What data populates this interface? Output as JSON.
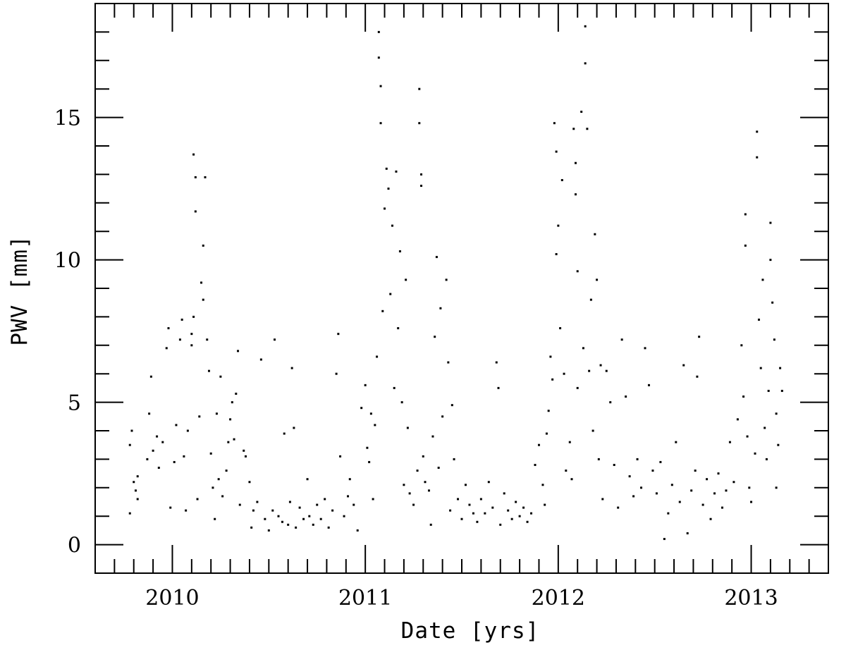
{
  "chart_data": {
    "type": "scatter",
    "title": "",
    "xlabel": "Date [yrs]",
    "ylabel": "PWV [mm]",
    "xlim": [
      2009.6,
      2013.4
    ],
    "ylim": [
      -1,
      19
    ],
    "xticks_major": [
      2010,
      2011,
      2012,
      2013
    ],
    "xtick_labels": [
      "2010",
      "2011",
      "2012",
      "2013"
    ],
    "yticks_major": [
      0,
      5,
      10,
      15
    ],
    "ytick_labels": [
      "0",
      "5",
      "10",
      "15"
    ],
    "grid": false,
    "legend": "none",
    "marker_color": "#000000",
    "series": [
      {
        "points": [
          [
            2009.78,
            1.1
          ],
          [
            2009.78,
            3.5
          ],
          [
            2009.79,
            4.0
          ],
          [
            2009.8,
            2.2
          ],
          [
            2009.81,
            1.9
          ],
          [
            2009.82,
            1.6
          ],
          [
            2009.82,
            2.4
          ],
          [
            2009.87,
            3.0
          ],
          [
            2009.88,
            4.6
          ],
          [
            2009.89,
            5.9
          ],
          [
            2009.9,
            3.3
          ],
          [
            2009.92,
            3.8
          ],
          [
            2009.93,
            2.7
          ],
          [
            2009.95,
            3.6
          ],
          [
            2009.97,
            6.9
          ],
          [
            2009.98,
            7.6
          ],
          [
            2009.99,
            1.3
          ],
          [
            2010.01,
            2.9
          ],
          [
            2010.02,
            4.2
          ],
          [
            2010.04,
            7.2
          ],
          [
            2010.05,
            7.9
          ],
          [
            2010.06,
            3.1
          ],
          [
            2010.07,
            1.2
          ],
          [
            2010.08,
            4.0
          ],
          [
            2010.1,
            7.4
          ],
          [
            2010.1,
            7.0
          ],
          [
            2010.11,
            8.0
          ],
          [
            2010.11,
            13.7
          ],
          [
            2010.12,
            12.9
          ],
          [
            2010.12,
            11.7
          ],
          [
            2010.13,
            1.6
          ],
          [
            2010.14,
            4.5
          ],
          [
            2010.15,
            9.2
          ],
          [
            2010.16,
            10.5
          ],
          [
            2010.16,
            8.6
          ],
          [
            2010.17,
            12.9
          ],
          [
            2010.18,
            7.2
          ],
          [
            2010.19,
            6.1
          ],
          [
            2010.2,
            3.2
          ],
          [
            2010.21,
            2.0
          ],
          [
            2010.22,
            0.9
          ],
          [
            2010.23,
            4.6
          ],
          [
            2010.24,
            2.3
          ],
          [
            2010.25,
            5.9
          ],
          [
            2010.26,
            1.7
          ],
          [
            2010.28,
            2.6
          ],
          [
            2010.29,
            3.6
          ],
          [
            2010.3,
            4.4
          ],
          [
            2010.31,
            5.0
          ],
          [
            2010.32,
            3.7
          ],
          [
            2010.33,
            5.3
          ],
          [
            2010.34,
            6.8
          ],
          [
            2010.35,
            1.4
          ],
          [
            2010.37,
            3.3
          ],
          [
            2010.38,
            3.1
          ],
          [
            2010.4,
            2.2
          ],
          [
            2010.41,
            0.6
          ],
          [
            2010.42,
            1.2
          ],
          [
            2010.44,
            1.5
          ],
          [
            2010.46,
            6.5
          ],
          [
            2010.48,
            0.9
          ],
          [
            2010.5,
            0.5
          ],
          [
            2010.52,
            1.2
          ],
          [
            2010.53,
            7.2
          ],
          [
            2010.55,
            1.0
          ],
          [
            2010.57,
            0.8
          ],
          [
            2010.58,
            3.9
          ],
          [
            2010.6,
            0.7
          ],
          [
            2010.61,
            1.5
          ],
          [
            2010.62,
            6.2
          ],
          [
            2010.63,
            4.1
          ],
          [
            2010.64,
            0.6
          ],
          [
            2010.66,
            1.3
          ],
          [
            2010.68,
            0.9
          ],
          [
            2010.7,
            2.3
          ],
          [
            2010.71,
            1.0
          ],
          [
            2010.73,
            0.7
          ],
          [
            2010.75,
            1.4
          ],
          [
            2010.77,
            0.9
          ],
          [
            2010.79,
            1.6
          ],
          [
            2010.81,
            0.6
          ],
          [
            2010.83,
            1.2
          ],
          [
            2010.85,
            6.0
          ],
          [
            2010.86,
            7.4
          ],
          [
            2010.87,
            3.1
          ],
          [
            2010.89,
            1.0
          ],
          [
            2010.91,
            1.7
          ],
          [
            2010.92,
            2.3
          ],
          [
            2010.94,
            1.4
          ],
          [
            2010.96,
            0.5
          ],
          [
            2010.98,
            4.8
          ],
          [
            2011.0,
            5.6
          ],
          [
            2011.01,
            3.4
          ],
          [
            2011.02,
            2.9
          ],
          [
            2011.03,
            4.6
          ],
          [
            2011.04,
            1.6
          ],
          [
            2011.05,
            4.2
          ],
          [
            2011.06,
            6.6
          ],
          [
            2011.07,
            17.1
          ],
          [
            2011.07,
            18.0
          ],
          [
            2011.08,
            16.1
          ],
          [
            2011.08,
            14.8
          ],
          [
            2011.09,
            8.2
          ],
          [
            2011.1,
            11.8
          ],
          [
            2011.11,
            13.2
          ],
          [
            2011.12,
            12.5
          ],
          [
            2011.13,
            8.8
          ],
          [
            2011.14,
            11.2
          ],
          [
            2011.15,
            5.5
          ],
          [
            2011.16,
            13.1
          ],
          [
            2011.17,
            7.6
          ],
          [
            2011.18,
            10.3
          ],
          [
            2011.19,
            5.0
          ],
          [
            2011.2,
            2.1
          ],
          [
            2011.21,
            9.3
          ],
          [
            2011.22,
            4.1
          ],
          [
            2011.23,
            1.8
          ],
          [
            2011.25,
            1.4
          ],
          [
            2011.27,
            2.6
          ],
          [
            2011.28,
            16.0
          ],
          [
            2011.28,
            14.8
          ],
          [
            2011.29,
            13.0
          ],
          [
            2011.29,
            12.6
          ],
          [
            2011.3,
            3.1
          ],
          [
            2011.31,
            2.2
          ],
          [
            2011.33,
            1.9
          ],
          [
            2011.34,
            0.7
          ],
          [
            2011.35,
            3.8
          ],
          [
            2011.36,
            7.3
          ],
          [
            2011.37,
            10.1
          ],
          [
            2011.38,
            2.7
          ],
          [
            2011.39,
            8.3
          ],
          [
            2011.4,
            4.5
          ],
          [
            2011.42,
            9.3
          ],
          [
            2011.43,
            6.4
          ],
          [
            2011.44,
            1.2
          ],
          [
            2011.45,
            4.9
          ],
          [
            2011.46,
            3.0
          ],
          [
            2011.48,
            1.6
          ],
          [
            2011.5,
            0.9
          ],
          [
            2011.52,
            2.1
          ],
          [
            2011.54,
            1.4
          ],
          [
            2011.56,
            1.1
          ],
          [
            2011.58,
            0.8
          ],
          [
            2011.6,
            1.6
          ],
          [
            2011.62,
            1.1
          ],
          [
            2011.64,
            2.2
          ],
          [
            2011.66,
            1.3
          ],
          [
            2011.68,
            6.4
          ],
          [
            2011.69,
            5.5
          ],
          [
            2011.7,
            0.7
          ],
          [
            2011.72,
            1.8
          ],
          [
            2011.74,
            1.2
          ],
          [
            2011.76,
            0.9
          ],
          [
            2011.78,
            1.5
          ],
          [
            2011.8,
            1.0
          ],
          [
            2011.82,
            1.3
          ],
          [
            2011.84,
            0.8
          ],
          [
            2011.86,
            1.1
          ],
          [
            2011.88,
            2.8
          ],
          [
            2011.9,
            3.5
          ],
          [
            2011.92,
            2.1
          ],
          [
            2011.93,
            1.4
          ],
          [
            2011.94,
            3.9
          ],
          [
            2011.95,
            4.7
          ],
          [
            2011.96,
            6.6
          ],
          [
            2011.97,
            5.8
          ],
          [
            2011.98,
            14.8
          ],
          [
            2011.99,
            13.8
          ],
          [
            2011.99,
            10.2
          ],
          [
            2012.0,
            11.2
          ],
          [
            2012.01,
            7.6
          ],
          [
            2012.02,
            12.8
          ],
          [
            2012.03,
            6.0
          ],
          [
            2012.04,
            2.6
          ],
          [
            2012.06,
            3.6
          ],
          [
            2012.07,
            2.3
          ],
          [
            2012.08,
            14.6
          ],
          [
            2012.09,
            13.4
          ],
          [
            2012.09,
            12.3
          ],
          [
            2012.1,
            5.5
          ],
          [
            2012.1,
            9.6
          ],
          [
            2012.12,
            15.2
          ],
          [
            2012.13,
            6.9
          ],
          [
            2012.14,
            18.2
          ],
          [
            2012.14,
            16.9
          ],
          [
            2012.15,
            14.6
          ],
          [
            2012.16,
            6.1
          ],
          [
            2012.17,
            8.6
          ],
          [
            2012.18,
            4.0
          ],
          [
            2012.19,
            10.9
          ],
          [
            2012.2,
            9.3
          ],
          [
            2012.21,
            3.0
          ],
          [
            2012.22,
            6.3
          ],
          [
            2012.23,
            1.6
          ],
          [
            2012.25,
            6.1
          ],
          [
            2012.27,
            5.0
          ],
          [
            2012.29,
            2.8
          ],
          [
            2012.31,
            1.3
          ],
          [
            2012.33,
            7.2
          ],
          [
            2012.35,
            5.2
          ],
          [
            2012.37,
            2.4
          ],
          [
            2012.39,
            1.7
          ],
          [
            2012.41,
            3.0
          ],
          [
            2012.43,
            2.0
          ],
          [
            2012.45,
            6.9
          ],
          [
            2012.47,
            5.6
          ],
          [
            2012.49,
            2.6
          ],
          [
            2012.51,
            1.8
          ],
          [
            2012.53,
            2.9
          ],
          [
            2012.55,
            0.2
          ],
          [
            2012.57,
            1.1
          ],
          [
            2012.59,
            2.1
          ],
          [
            2012.61,
            3.6
          ],
          [
            2012.63,
            1.5
          ],
          [
            2012.65,
            6.3
          ],
          [
            2012.67,
            0.4
          ],
          [
            2012.69,
            1.9
          ],
          [
            2012.71,
            2.6
          ],
          [
            2012.72,
            5.9
          ],
          [
            2012.73,
            7.3
          ],
          [
            2012.75,
            1.4
          ],
          [
            2012.77,
            2.3
          ],
          [
            2012.79,
            0.9
          ],
          [
            2012.81,
            1.8
          ],
          [
            2012.83,
            2.5
          ],
          [
            2012.85,
            1.3
          ],
          [
            2012.87,
            1.9
          ],
          [
            2012.89,
            3.6
          ],
          [
            2012.91,
            2.2
          ],
          [
            2012.93,
            4.4
          ],
          [
            2012.95,
            7.0
          ],
          [
            2012.96,
            5.2
          ],
          [
            2012.97,
            11.6
          ],
          [
            2012.97,
            10.5
          ],
          [
            2012.98,
            3.8
          ],
          [
            2012.99,
            2.0
          ],
          [
            2013.0,
            1.5
          ],
          [
            2013.02,
            3.2
          ],
          [
            2013.03,
            14.5
          ],
          [
            2013.03,
            13.6
          ],
          [
            2013.04,
            7.9
          ],
          [
            2013.05,
            6.2
          ],
          [
            2013.06,
            9.3
          ],
          [
            2013.07,
            4.1
          ],
          [
            2013.08,
            3.0
          ],
          [
            2013.09,
            5.4
          ],
          [
            2013.1,
            11.3
          ],
          [
            2013.1,
            10.0
          ],
          [
            2013.11,
            8.5
          ],
          [
            2013.12,
            7.2
          ],
          [
            2013.13,
            4.6
          ],
          [
            2013.13,
            2.0
          ],
          [
            2013.14,
            3.5
          ],
          [
            2013.15,
            6.2
          ],
          [
            2013.16,
            5.4
          ]
        ]
      }
    ]
  }
}
